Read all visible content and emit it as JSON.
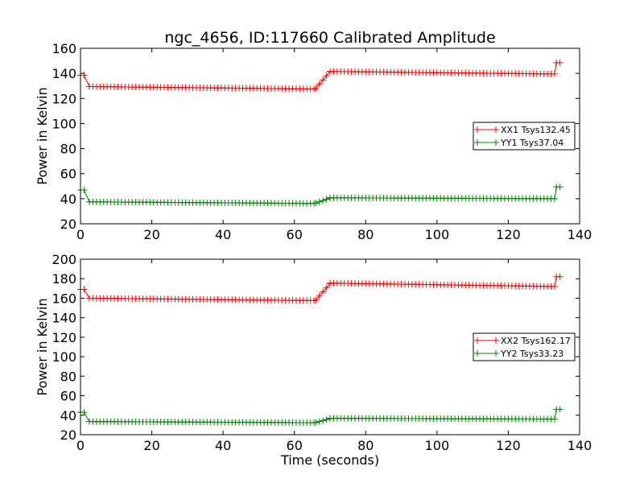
{
  "figure_title": "ngc_4656, ID:117660 Calibrated Amplitude",
  "chart_data": [
    {
      "type": "line",
      "title": "ngc_4656, ID:117660 Calibrated Amplitude",
      "xlabel": "",
      "ylabel": "Power in Kelvin",
      "xlim": [
        0,
        140
      ],
      "ylim": [
        20,
        160
      ],
      "xticks": [
        0,
        20,
        40,
        60,
        80,
        100,
        120,
        140
      ],
      "yticks": [
        20,
        40,
        60,
        80,
        100,
        120,
        140,
        160
      ],
      "grid": false,
      "legend_position": "right",
      "series": [
        {
          "name": "XX1 Tsys132.45",
          "color": "#ff0000",
          "marker": "plus",
          "segments": [
            {
              "from": 0,
              "to": 1.5,
              "value": 138.5
            },
            {
              "from": 2.5,
              "to": 66,
              "start": 129.5,
              "end": 127.5
            },
            {
              "from": 66,
              "to": 70,
              "start": 128,
              "end": 141.5
            },
            {
              "from": 70,
              "to": 133,
              "start": 141.5,
              "end": 139.5
            },
            {
              "from": 133.5,
              "to": 135,
              "value": 148.5
            }
          ]
        },
        {
          "name": "YY1 Tsys37.04",
          "color": "#008000",
          "marker": "plus",
          "segments": [
            {
              "from": 0,
              "to": 1.5,
              "value": 47
            },
            {
              "from": 2.5,
              "to": 66,
              "start": 37.5,
              "end": 36.2
            },
            {
              "from": 66,
              "to": 70,
              "start": 36.5,
              "end": 40.5
            },
            {
              "from": 70,
              "to": 133,
              "start": 40.7,
              "end": 40
            },
            {
              "from": 133.5,
              "to": 135,
              "value": 49.5
            }
          ]
        }
      ]
    },
    {
      "type": "line",
      "title": "",
      "xlabel": "Time (seconds)",
      "ylabel": "Power in Kelvin",
      "xlim": [
        0,
        140
      ],
      "ylim": [
        20,
        200
      ],
      "xticks": [
        0,
        20,
        40,
        60,
        80,
        100,
        120,
        140
      ],
      "yticks": [
        20,
        40,
        60,
        80,
        100,
        120,
        140,
        160,
        180,
        200
      ],
      "grid": false,
      "legend_position": "right",
      "series": [
        {
          "name": "XX2 Tsys162.17",
          "color": "#ff0000",
          "marker": "plus",
          "segments": [
            {
              "from": 0,
              "to": 1.5,
              "value": 169
            },
            {
              "from": 2.5,
              "to": 66,
              "start": 160,
              "end": 157.5
            },
            {
              "from": 66,
              "to": 70,
              "start": 158,
              "end": 175
            },
            {
              "from": 70,
              "to": 133,
              "start": 175.5,
              "end": 172
            },
            {
              "from": 133.5,
              "to": 135,
              "value": 182
            }
          ]
        },
        {
          "name": "YY2 Tsys33.23",
          "color": "#008000",
          "marker": "plus",
          "segments": [
            {
              "from": 0,
              "to": 1.5,
              "value": 43
            },
            {
              "from": 2.5,
              "to": 66,
              "start": 33.5,
              "end": 32.3
            },
            {
              "from": 66,
              "to": 70,
              "start": 32.5,
              "end": 36.5
            },
            {
              "from": 70,
              "to": 133,
              "start": 36.8,
              "end": 36
            },
            {
              "from": 133.5,
              "to": 135,
              "value": 46
            }
          ]
        }
      ]
    }
  ]
}
